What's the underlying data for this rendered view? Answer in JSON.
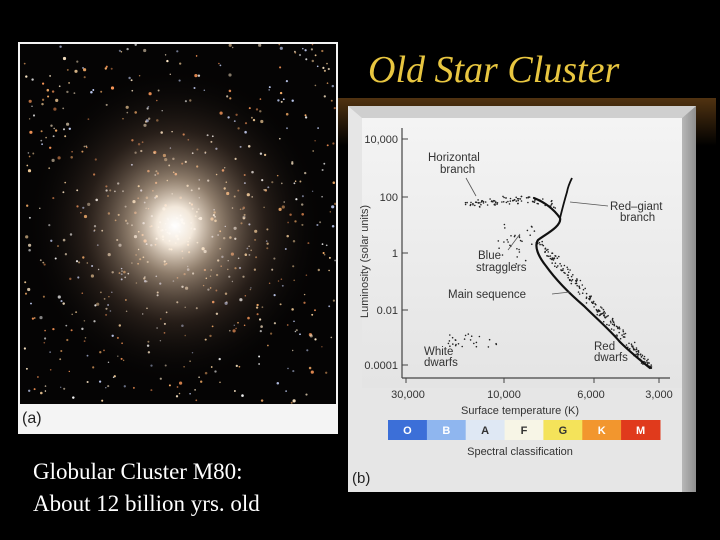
{
  "slide": {
    "title": "Old Star Cluster",
    "caption_line1": "Globular Cluster M80:",
    "caption_line2": "About 12 billion yrs. old"
  },
  "photo": {
    "panel_label": "(a)",
    "subject": "globular cluster star field"
  },
  "diagram": {
    "panel_label": "(b)",
    "y_axis_label": "Luminosity (solar units)",
    "y_ticks": [
      "10,000",
      "100",
      "1",
      "0.01",
      "0.0001"
    ],
    "x_axis_label": "Surface temperature (K)",
    "x_ticks": [
      "30,000",
      "10,000",
      "6,000",
      "3,000"
    ],
    "spectral_label": "Spectral classification",
    "spectral_classes": [
      {
        "letter": "O",
        "color": "#3c6fd8",
        "text_color": "#ffffff"
      },
      {
        "letter": "B",
        "color": "#8fb6ef",
        "text_color": "#ffffff"
      },
      {
        "letter": "A",
        "color": "#dfe8f4",
        "text_color": "#333333"
      },
      {
        "letter": "F",
        "color": "#f7f5e6",
        "text_color": "#333333"
      },
      {
        "letter": "G",
        "color": "#f4e35a",
        "text_color": "#333333"
      },
      {
        "letter": "K",
        "color": "#f2962e",
        "text_color": "#ffffff"
      },
      {
        "letter": "M",
        "color": "#e03a1c",
        "text_color": "#ffffff"
      }
    ],
    "annotations": {
      "horizontal_branch_1": "Horizontal",
      "horizontal_branch_2": "branch",
      "red_giant_branch_1": "Red–giant",
      "red_giant_branch_2": "branch",
      "blue_stragglers_1": "Blue",
      "blue_stragglers_2": "stragglers",
      "main_sequence": "Main sequence",
      "white_dwarfs_1": "White",
      "white_dwarfs_2": "dwarfs",
      "red_dwarfs_1": "Red",
      "red_dwarfs_2": "dwarfs"
    }
  },
  "colors": {
    "title": "#e8c640",
    "background": "#000000"
  }
}
